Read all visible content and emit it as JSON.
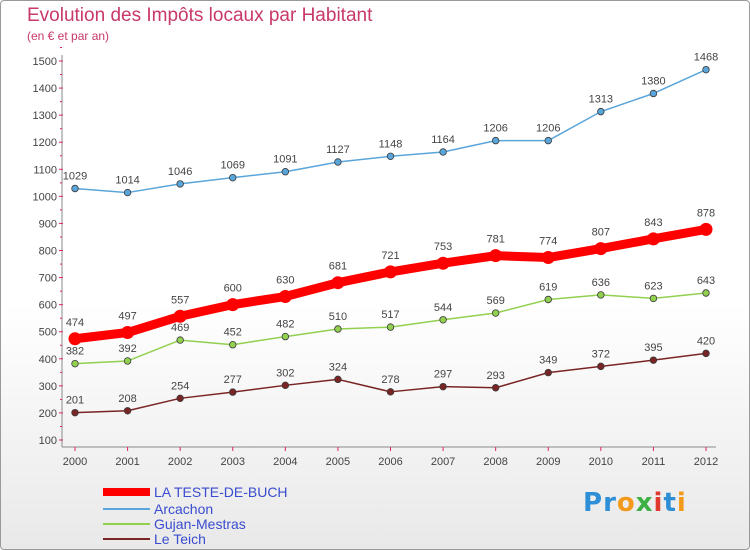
{
  "header": {
    "title": "Evolution des Impôts locaux par Habitant",
    "subtitle": "(en € et par an)"
  },
  "logo": {
    "text": "Proxiti",
    "letters": [
      {
        "ch": "P",
        "color": "#2e8fd6"
      },
      {
        "ch": "r",
        "color": "#2e8fd6"
      },
      {
        "ch": "o",
        "color": "#f39a1c"
      },
      {
        "ch": "x",
        "color": "#3cb043"
      },
      {
        "ch": "i",
        "color": "#e03a2f"
      },
      {
        "ch": "t",
        "color": "#2e8fd6"
      },
      {
        "ch": "i",
        "color": "#f39a1c"
      }
    ]
  },
  "chart_data": {
    "type": "line",
    "title": "Evolution des Impôts locaux par Habitant",
    "subtitle": "(en € et par an)",
    "xlabel": "",
    "ylabel": "",
    "x": [
      "2000",
      "2001",
      "2002",
      "2003",
      "2004",
      "2005",
      "2006",
      "2007",
      "2008",
      "2009",
      "2010",
      "2011",
      "2012"
    ],
    "yticks": [
      100,
      200,
      300,
      400,
      500,
      600,
      700,
      800,
      900,
      1000,
      1100,
      1200,
      1300,
      1400,
      1500
    ],
    "ylim": [
      100,
      1500
    ],
    "grid": false,
    "legend_position": "bottom-left",
    "series": [
      {
        "name": "LA TESTE-DE-BUCH",
        "color": "#ff0000",
        "emphasis": true,
        "values": [
          474,
          497,
          557,
          600,
          630,
          681,
          721,
          753,
          781,
          774,
          807,
          843,
          878
        ]
      },
      {
        "name": "Arcachon",
        "color": "#5aa5da",
        "emphasis": false,
        "values": [
          1029,
          1014,
          1046,
          1069,
          1091,
          1127,
          1148,
          1164,
          1206,
          1206,
          1313,
          1380,
          1468
        ]
      },
      {
        "name": "Gujan-Mestras",
        "color": "#92d050",
        "emphasis": false,
        "values": [
          382,
          392,
          469,
          452,
          482,
          510,
          517,
          544,
          569,
          619,
          636,
          623,
          643
        ]
      },
      {
        "name": "Le Teich",
        "color": "#7a2525",
        "emphasis": false,
        "values": [
          201,
          208,
          254,
          277,
          302,
          324,
          278,
          297,
          293,
          349,
          372,
          395,
          420
        ]
      }
    ]
  }
}
